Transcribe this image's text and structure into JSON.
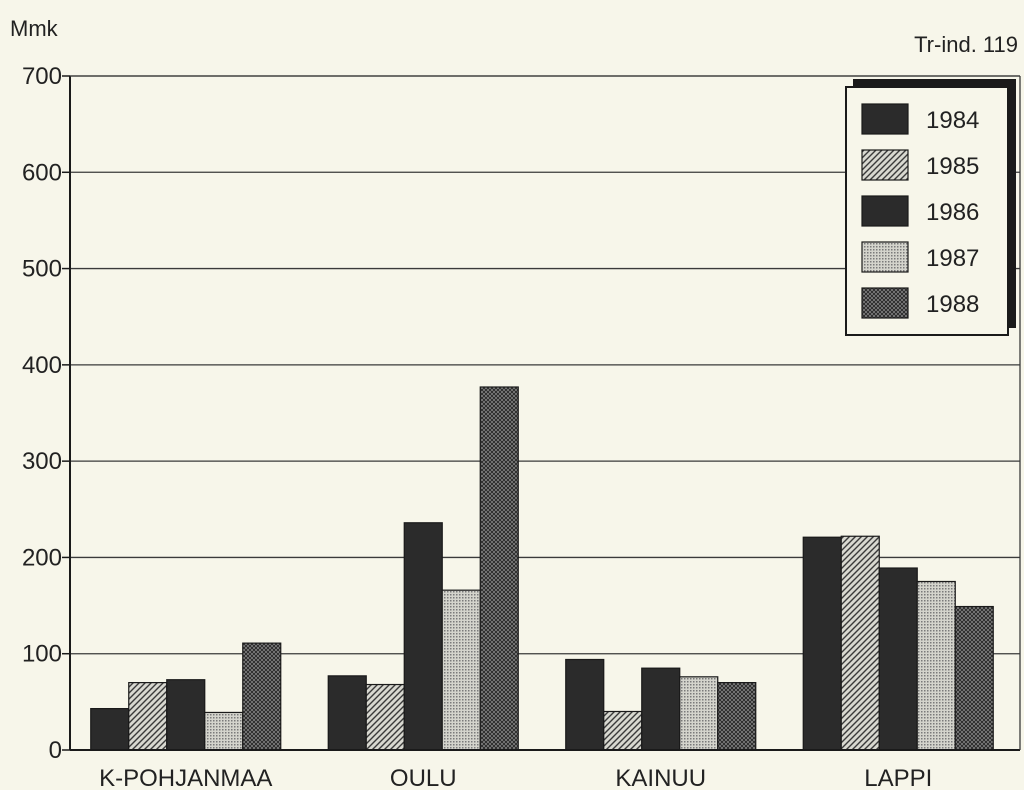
{
  "chart_data": {
    "type": "bar",
    "ylabel": "Mmk",
    "note": "Tr-ind. 119",
    "ylim": [
      0,
      700
    ],
    "yticks": [
      0,
      100,
      200,
      300,
      400,
      500,
      600,
      700
    ],
    "grid": true,
    "legend_position": "top-right",
    "categories": [
      "K-POHJANMAA",
      "OULU",
      "KAINUU",
      "LAPPI"
    ],
    "series": [
      {
        "name": "1984",
        "values": [
          43,
          77,
          94,
          221
        ],
        "pattern": "solid-dark",
        "color": "#2a2a2a"
      },
      {
        "name": "1985",
        "values": [
          70,
          68,
          40,
          222
        ],
        "pattern": "diagonal-hatch",
        "color": "#9a9a9a"
      },
      {
        "name": "1986",
        "values": [
          73,
          236,
          85,
          189
        ],
        "pattern": "solid-dark",
        "color": "#2f2f2f"
      },
      {
        "name": "1987",
        "values": [
          39,
          166,
          76,
          175
        ],
        "pattern": "fine-dots",
        "color": "#b8b8b8"
      },
      {
        "name": "1988",
        "values": [
          111,
          377,
          70,
          149
        ],
        "pattern": "crosshatch",
        "color": "#6a6a6a"
      }
    ]
  }
}
